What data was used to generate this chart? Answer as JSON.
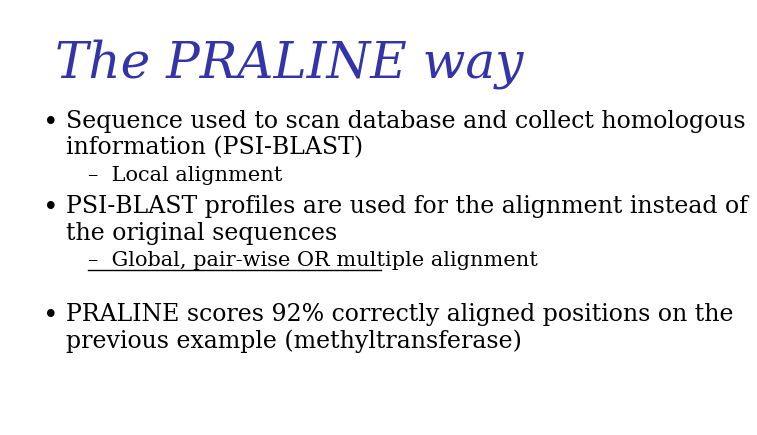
{
  "title": "The PRALINE way",
  "title_color": "#3333aa",
  "title_fontsize": 36,
  "title_font": "serif",
  "background_color": "#ffffff",
  "bullet1_text": "Sequence used to scan database and collect homologous\ninformation (PSI-BLAST)",
  "sub1_text": "–  Local alignment",
  "bullet2_text": "PSI-BLAST profiles are used for the alignment instead of\nthe original sequences",
  "sub2_text": "–  Global, pair-wise OR multiple alignment",
  "sub2_underline": true,
  "bullet3_text": "PRALINE scores 92% correctly aligned positions on the\nprevious example (methyltransferase)",
  "bullet_color": "#000000",
  "bullet_fontsize": 17,
  "sub_fontsize": 15,
  "bullet_font": "serif",
  "bullet_symbol": "•"
}
